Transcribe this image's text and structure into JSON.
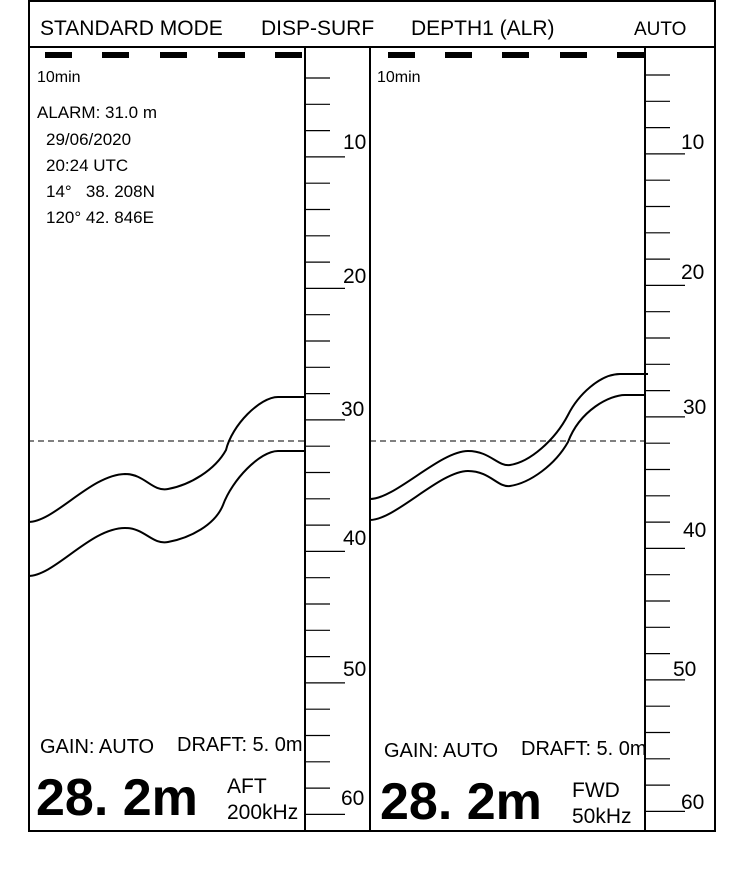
{
  "header": {
    "mode": "STANDARD MODE",
    "display": "DISP-SURF",
    "depth_source": "DEPTH1 (ALR)",
    "range_mode": "AUTO"
  },
  "left_panel": {
    "time_scale": "10min",
    "alarm": "ALARM: 31.0 m",
    "date": "29/06/2020",
    "time": "20:24 UTC",
    "latitude": "14°   38. 208N",
    "longitude": "120° 42. 846E",
    "gain": "GAIN: AUTO",
    "draft": "DRAFT: 5. 0m",
    "depth": "28. 2m",
    "transducer": "AFT",
    "frequency": "200kHz"
  },
  "right_panel": {
    "time_scale": "10min",
    "gain": "GAIN: AUTO",
    "draft": "DRAFT: 5. 0m",
    "depth": "28. 2m",
    "transducer": "FWD",
    "frequency": "50kHz"
  },
  "left_scale": [
    "10",
    "20",
    "30",
    "40",
    "50",
    "60"
  ],
  "right_scale": [
    "10",
    "20",
    "30",
    "40",
    "50",
    "60"
  ]
}
